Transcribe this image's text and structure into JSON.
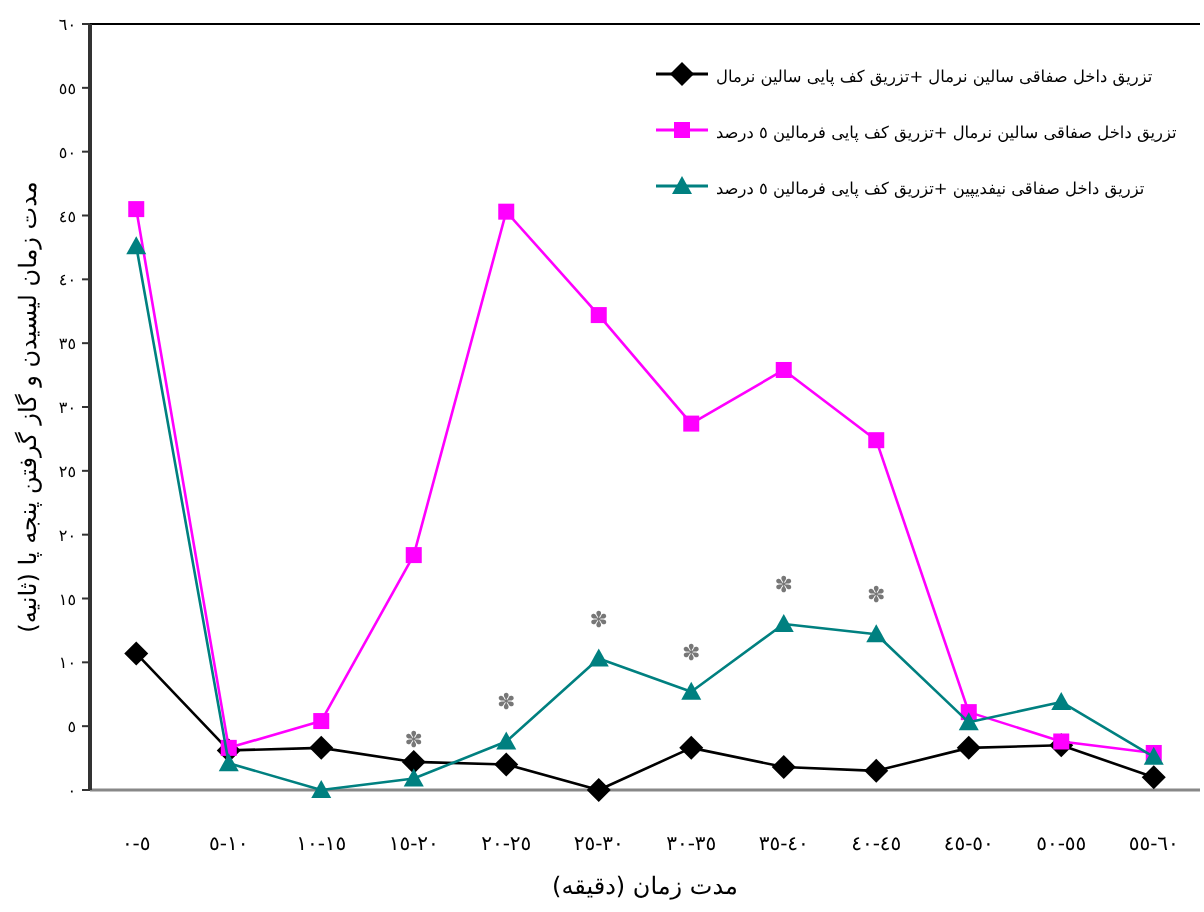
{
  "chart_data": {
    "type": "line",
    "xlabel": "مدت زمان (دقیقه)",
    "ylabel": "مدت زمان لیسیدن و گاز گرفتن پنجه پا (ثانیه)",
    "categories": [
      "٠-٥",
      "٥-١٠",
      "١٠-١٥",
      "١٥-٢٠",
      "٢٠-٢٥",
      "٢٥-٣٠",
      "٣٠-٣٥",
      "٣٥-٤٠",
      "٤٠-٤٥",
      "٤٥-٥٠",
      "٥٠-٥٥",
      "٥٥-٦٠"
    ],
    "ylim": [
      0,
      60
    ],
    "yticks": [
      {
        "value": 0,
        "label": "٠"
      },
      {
        "value": 5,
        "label": "٥"
      },
      {
        "value": 10,
        "label": "١٠"
      },
      {
        "value": 15,
        "label": "١٥"
      },
      {
        "value": 20,
        "label": "٢٠"
      },
      {
        "value": 25,
        "label": "٢٥"
      },
      {
        "value": 30,
        "label": "٣٠"
      },
      {
        "value": 35,
        "label": "٣٥"
      },
      {
        "value": 40,
        "label": "٤٠"
      },
      {
        "value": 45,
        "label": "٤٥"
      },
      {
        "value": 50,
        "label": "٥٠"
      },
      {
        "value": 55,
        "label": "٥٥"
      },
      {
        "value": 60,
        "label": "٦٠"
      }
    ],
    "series": [
      {
        "name": "تزریق داخل صفاقی سالین نرمال +تزریق کف پایی سالین نرمال",
        "color": "#000000",
        "marker": "diamond",
        "values": [
          10.7,
          3.1,
          3.3,
          2.2,
          2.0,
          0,
          3.3,
          1.8,
          1.5,
          3.3,
          3.5,
          1.0
        ]
      },
      {
        "name": "تزریق داخل صفاقی سالین نرمال +تزریق کف پایی فرمالین ٥ درصد",
        "color": "#ff00ff",
        "marker": "square",
        "values": [
          45.5,
          3.3,
          5.4,
          18.4,
          45.3,
          37.2,
          28.7,
          32.9,
          27.4,
          6.1,
          3.8,
          2.9
        ]
      },
      {
        "name": "تزریق داخل صفاقی نیفدیپین +تزریق کف پایی فرمالین ٥ درصد",
        "color": "#008080",
        "marker": "triangle",
        "values": [
          42.6,
          2.1,
          0,
          0.9,
          3.8,
          10.3,
          7.7,
          13.0,
          12.2,
          5.3,
          6.9,
          2.6
        ]
      }
    ],
    "annotations": [
      {
        "text": "✽",
        "x": "١٥-٢٠",
        "y": 0.9
      },
      {
        "text": "✽",
        "x": "٢٠-٢٥",
        "y": 3.8
      },
      {
        "text": "✽",
        "x": "٢٥-٣٠",
        "y": 10.3
      },
      {
        "text": "✽",
        "x": "٣٠-٣٥",
        "y": 7.7
      },
      {
        "text": "✽",
        "x": "٣٥-٤٠",
        "y": 13.0
      },
      {
        "text": "✽",
        "x": "٤٠-٤٥",
        "y": 12.2
      }
    ],
    "legend": "top right",
    "grid": false
  }
}
